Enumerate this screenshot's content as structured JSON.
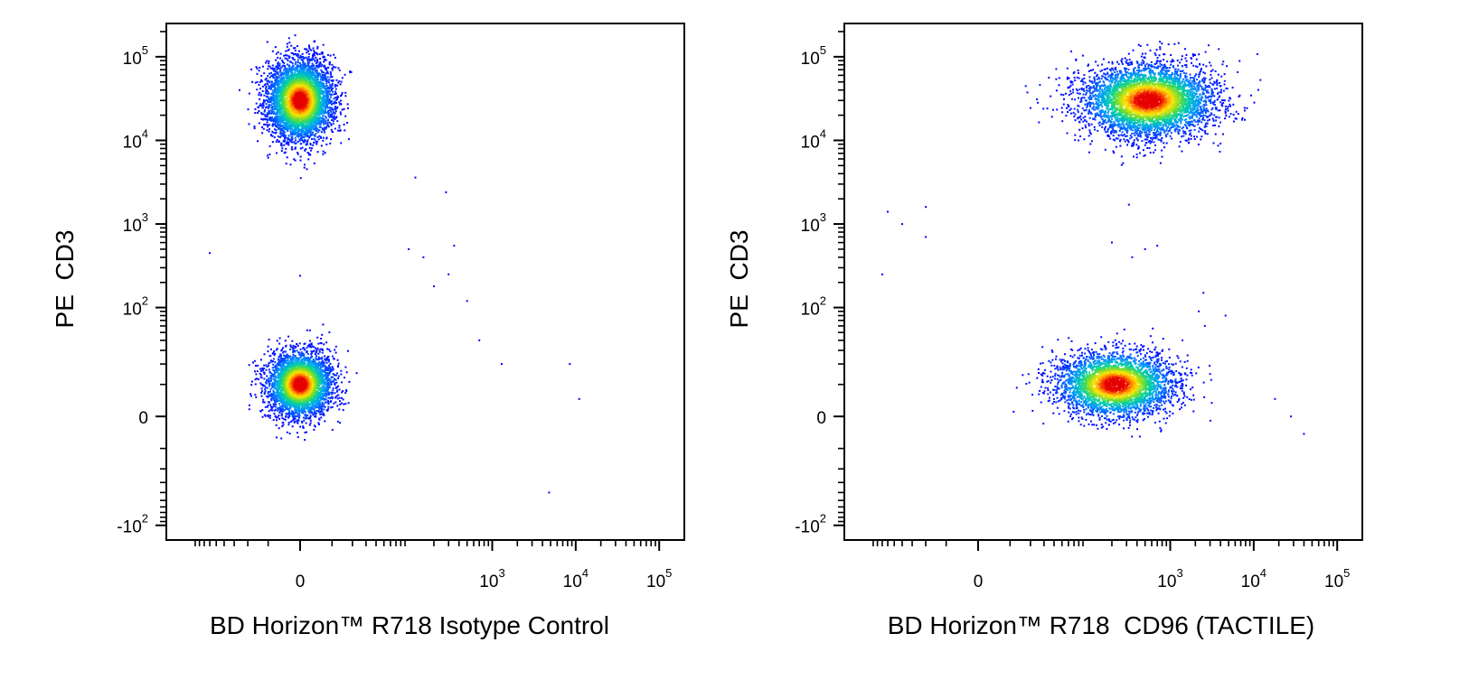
{
  "chart_data": [
    {
      "type": "scatter",
      "title": "",
      "xlabel": "BD Horizon™ R718 Isotype Control",
      "ylabel": "PE  CD3",
      "scale": "biexponential",
      "grid": false,
      "legend": "none",
      "xlim": [
        -200,
        200000
      ],
      "ylim": [
        -150,
        250000
      ],
      "x_ticks": [
        {
          "value": 0,
          "base": "0",
          "exp": ""
        },
        {
          "value": 1000,
          "base": "10",
          "exp": "3"
        },
        {
          "value": 10000,
          "base": "10",
          "exp": "4"
        },
        {
          "value": 100000,
          "base": "10",
          "exp": "5"
        }
      ],
      "y_ticks": [
        {
          "value": -100,
          "base": "-10",
          "exp": "2"
        },
        {
          "value": 0,
          "base": "0",
          "exp": ""
        },
        {
          "value": 100,
          "base": "10",
          "exp": "2"
        },
        {
          "value": 1000,
          "base": "10",
          "exp": "3"
        },
        {
          "value": 10000,
          "base": "10",
          "exp": "4"
        },
        {
          "value": 100000,
          "base": "10",
          "exp": "5"
        }
      ],
      "populations": [
        {
          "x_center": 0,
          "y_center": 30000,
          "x_spread": 0.45,
          "y_spread": 0.55,
          "count": 4500
        },
        {
          "x_center": 0,
          "y_center": 10,
          "x_spread": 0.45,
          "y_spread": 0.45,
          "count": 3500
        }
      ],
      "outliers": [
        [
          150,
          400
        ],
        [
          300,
          250
        ],
        [
          700,
          40
        ],
        [
          1300,
          20
        ],
        [
          4800,
          -40
        ],
        [
          8500,
          20
        ],
        [
          11000,
          5
        ],
        [
          350,
          550
        ],
        [
          120,
          3600
        ],
        [
          280,
          2400
        ],
        [
          500,
          120
        ],
        [
          200,
          180
        ],
        [
          100,
          500
        ],
        [
          -60,
          450
        ],
        [
          0,
          240
        ]
      ]
    },
    {
      "type": "scatter",
      "title": "",
      "xlabel": "BD Horizon™ R718  CD96 (TACTILE)",
      "ylabel": "PE  CD3",
      "scale": "biexponential",
      "grid": false,
      "legend": "none",
      "xlim": [
        -200,
        200000
      ],
      "ylim": [
        -150,
        250000
      ],
      "x_ticks": [
        {
          "value": 0,
          "base": "0",
          "exp": ""
        },
        {
          "value": 1000,
          "base": "10",
          "exp": "3"
        },
        {
          "value": 10000,
          "base": "10",
          "exp": "4"
        },
        {
          "value": 100000,
          "base": "10",
          "exp": "5"
        }
      ],
      "y_ticks": [
        {
          "value": -100,
          "base": "-10",
          "exp": "2"
        },
        {
          "value": 0,
          "base": "0",
          "exp": ""
        },
        {
          "value": 100,
          "base": "10",
          "exp": "2"
        },
        {
          "value": 1000,
          "base": "10",
          "exp": "3"
        },
        {
          "value": 10000,
          "base": "10",
          "exp": "4"
        },
        {
          "value": 100000,
          "base": "10",
          "exp": "5"
        }
      ],
      "populations": [
        {
          "x_center": 550,
          "y_center": 30000,
          "x_spread": 0.9,
          "y_spread": 0.5,
          "count": 4500
        },
        {
          "x_center": 220,
          "y_center": 10,
          "x_spread": 0.8,
          "y_spread": 0.45,
          "count": 3500
        }
      ],
      "outliers": [
        [
          -60,
          1400
        ],
        [
          -20,
          1600
        ],
        [
          -40,
          1000
        ],
        [
          -20,
          700
        ],
        [
          200,
          600
        ],
        [
          320,
          1700
        ],
        [
          350,
          400
        ],
        [
          500,
          500
        ],
        [
          700,
          550
        ],
        [
          -70,
          250
        ],
        [
          1400,
          40
        ],
        [
          2500,
          150
        ],
        [
          4600,
          80
        ],
        [
          18000,
          5
        ],
        [
          28000,
          0
        ],
        [
          40000,
          -5
        ],
        [
          1800,
          15
        ],
        [
          2200,
          90
        ],
        [
          2600,
          60
        ]
      ]
    }
  ]
}
